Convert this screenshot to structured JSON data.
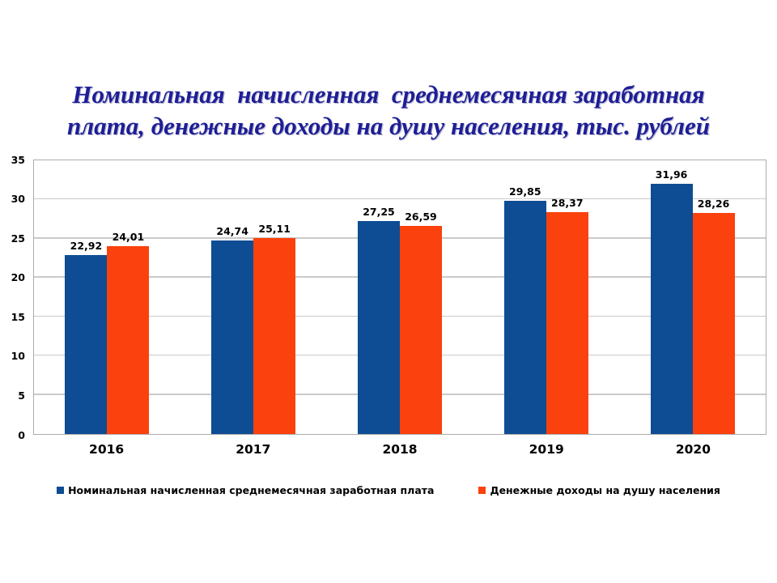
{
  "title": {
    "line1": "Номинальная  начисленная  среднемесячная заработная",
    "line2": "плата, денежные доходы на душу населения, тыс. рублей",
    "color": "#1E1E96"
  },
  "chart_data": {
    "type": "bar",
    "title": "Номинальная начисленная среднемесячная заработная плата, денежные доходы на душу населения, тыс. рублей",
    "categories": [
      "2016",
      "2017",
      "2018",
      "2019",
      "2020"
    ],
    "series": [
      {
        "name": "Номинальная начисленная среднемесячная заработная плата",
        "key": "salary",
        "color": "#0E4C94",
        "values": [
          22.92,
          24.74,
          27.25,
          29.85,
          31.96
        ],
        "labels": [
          "22,92",
          "24,74",
          "27,25",
          "29,85",
          "31,96"
        ]
      },
      {
        "name": "Денежные доходы на душу населения",
        "key": "income",
        "color": "#FB410D",
        "values": [
          24.01,
          25.11,
          26.59,
          28.37,
          28.26
        ],
        "labels": [
          "24,01",
          "25,11",
          "26,59",
          "28,37",
          "28,26"
        ]
      }
    ],
    "ylim": [
      0,
      35
    ],
    "yticks": [
      0,
      5,
      10,
      15,
      20,
      25,
      30,
      35
    ],
    "grid": "horizontal",
    "legend_position": "bottom",
    "colors": {
      "grid": "#CACACA",
      "border": "#ADADAD",
      "label": "#000000"
    }
  }
}
